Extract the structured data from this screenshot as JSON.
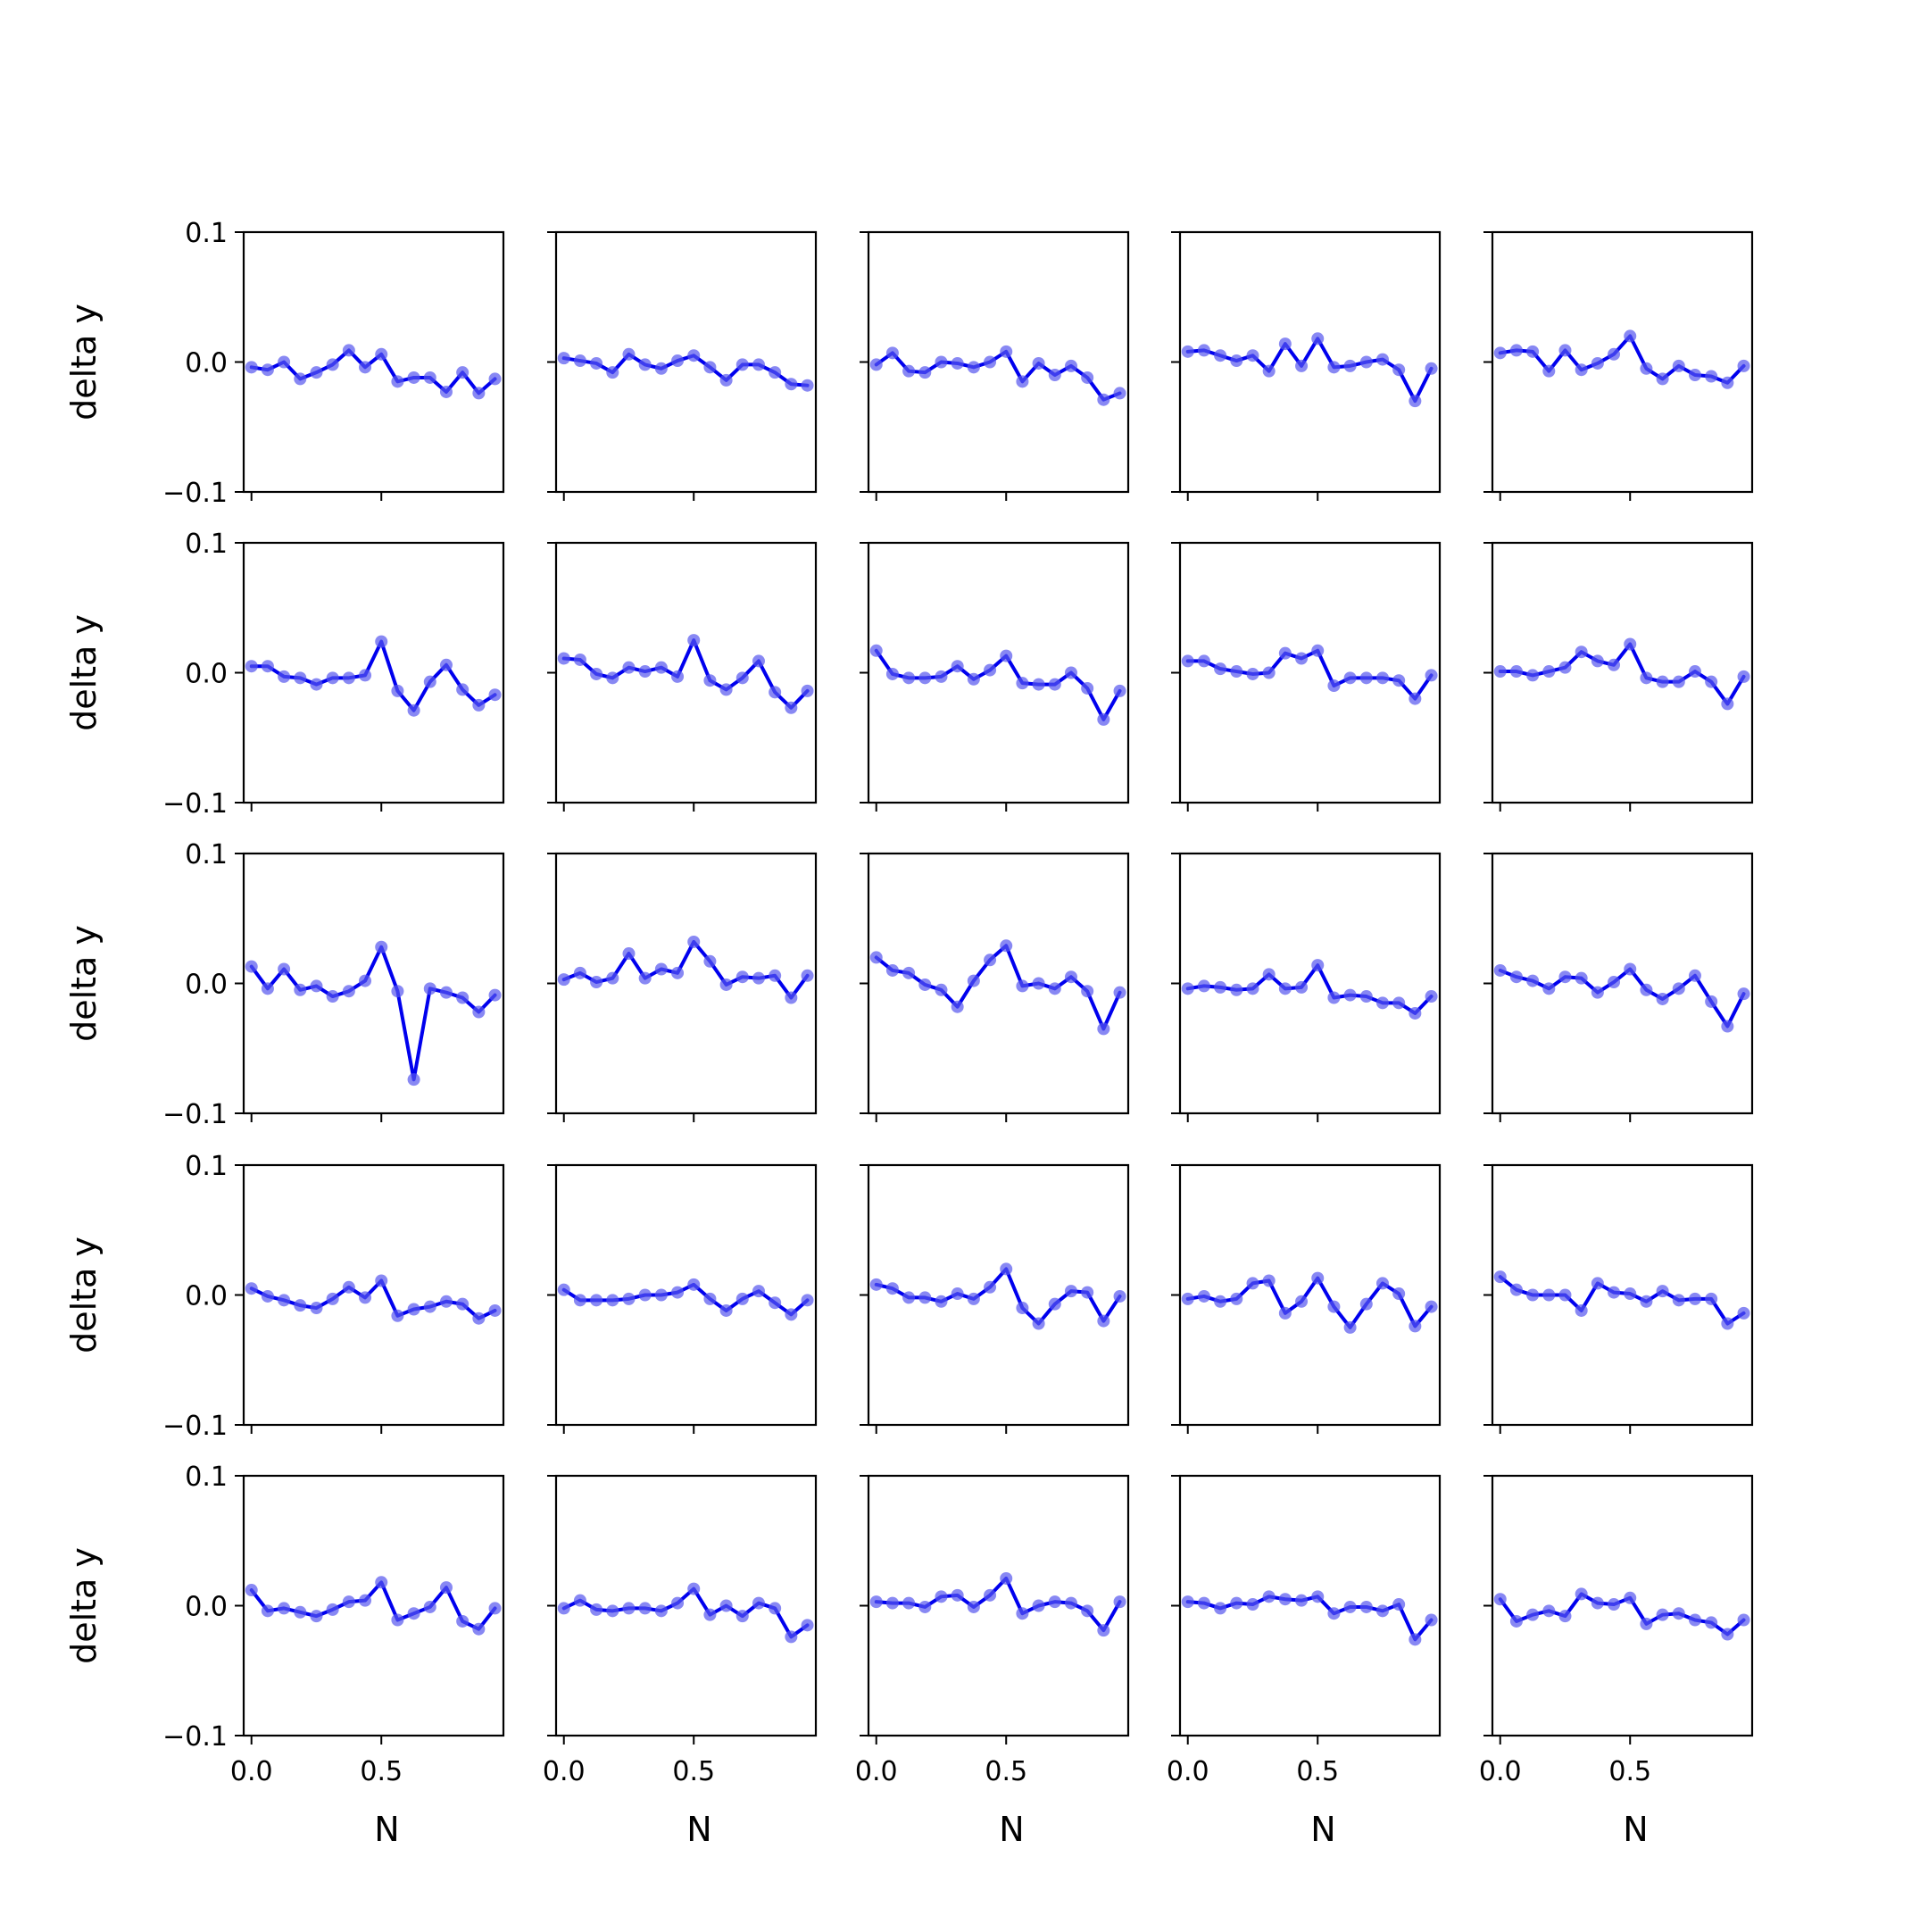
{
  "chart_data": {
    "type": "line",
    "layout": "5x5 grid of subplots",
    "shared_axes": true,
    "xlabel": "N",
    "ylabel": "delta y",
    "xlim": [
      -0.03,
      0.97
    ],
    "ylim": [
      -0.1,
      0.1
    ],
    "xticks": [
      0.0,
      0.5
    ],
    "xtick_labels": [
      "0.0",
      "0.5"
    ],
    "yticks": [
      -0.1,
      0.0,
      0.1
    ],
    "ytick_labels": [
      "−0.1",
      "0.0",
      "0.1"
    ],
    "grid": false,
    "legend": "none",
    "x": [
      0.0,
      0.0625,
      0.125,
      0.1875,
      0.25,
      0.3125,
      0.375,
      0.4375,
      0.5,
      0.5625,
      0.625,
      0.6875,
      0.75,
      0.8125,
      0.875,
      0.9375
    ],
    "panels": [
      [
        -0.004,
        -0.006,
        0.0,
        -0.013,
        -0.008,
        -0.002,
        0.009,
        -0.004,
        0.006,
        -0.015,
        -0.012,
        -0.012,
        -0.023,
        -0.008,
        -0.024,
        -0.013
      ],
      [
        0.003,
        0.001,
        -0.001,
        -0.008,
        0.006,
        -0.002,
        -0.005,
        0.001,
        0.005,
        -0.004,
        -0.014,
        -0.002,
        -0.002,
        -0.008,
        -0.017,
        -0.018
      ],
      [
        -0.002,
        0.007,
        -0.007,
        -0.008,
        0.0,
        -0.001,
        -0.004,
        0.0,
        0.008,
        -0.015,
        -0.001,
        -0.01,
        -0.003,
        -0.012,
        -0.029,
        -0.024
      ],
      [
        0.008,
        0.009,
        0.005,
        0.001,
        0.005,
        -0.007,
        0.014,
        -0.003,
        0.018,
        -0.004,
        -0.003,
        0.0,
        0.002,
        -0.006,
        -0.03,
        -0.005
      ],
      [
        0.007,
        0.009,
        0.008,
        -0.007,
        0.009,
        -0.006,
        -0.001,
        0.006,
        0.02,
        -0.005,
        -0.013,
        -0.003,
        -0.01,
        -0.011,
        -0.016,
        -0.003
      ]
    ],
    "panels_row2": [
      [
        0.005,
        0.005,
        -0.003,
        -0.004,
        -0.009,
        -0.004,
        -0.004,
        -0.002,
        0.024,
        -0.014,
        -0.029,
        -0.007,
        0.006,
        -0.013,
        -0.025,
        -0.017
      ],
      [
        0.011,
        0.01,
        -0.001,
        -0.004,
        0.004,
        0.001,
        0.004,
        -0.003,
        0.025,
        -0.006,
        -0.013,
        -0.004,
        0.009,
        -0.015,
        -0.027,
        -0.014
      ],
      [
        0.017,
        -0.001,
        -0.004,
        -0.004,
        -0.003,
        0.005,
        -0.005,
        0.002,
        0.013,
        -0.008,
        -0.009,
        -0.009,
        0.0,
        -0.012,
        -0.036,
        -0.014
      ],
      [
        0.009,
        0.009,
        0.003,
        0.001,
        -0.001,
        0.0,
        0.015,
        0.011,
        0.017,
        -0.01,
        -0.004,
        -0.004,
        -0.004,
        -0.006,
        -0.02,
        -0.002
      ],
      [
        0.001,
        0.001,
        -0.002,
        0.001,
        0.004,
        0.016,
        0.009,
        0.006,
        0.022,
        -0.004,
        -0.007,
        -0.007,
        0.001,
        -0.007,
        -0.024,
        -0.003
      ]
    ],
    "panels_row3": [
      [
        0.013,
        -0.004,
        0.011,
        -0.005,
        -0.002,
        -0.01,
        -0.006,
        0.002,
        0.028,
        -0.006,
        -0.074,
        -0.004,
        -0.007,
        -0.011,
        -0.022,
        -0.009
      ],
      [
        0.003,
        0.008,
        0.001,
        0.004,
        0.023,
        0.004,
        0.011,
        0.008,
        0.032,
        0.017,
        -0.001,
        0.005,
        0.004,
        0.006,
        -0.011,
        0.006
      ],
      [
        0.02,
        0.01,
        0.008,
        -0.001,
        -0.005,
        -0.018,
        0.002,
        0.018,
        0.029,
        -0.002,
        0.0,
        -0.004,
        0.005,
        -0.006,
        -0.035,
        -0.007
      ],
      [
        -0.004,
        -0.002,
        -0.003,
        -0.005,
        -0.004,
        0.007,
        -0.004,
        -0.003,
        0.014,
        -0.011,
        -0.009,
        -0.01,
        -0.015,
        -0.015,
        -0.023,
        -0.01
      ],
      [
        0.01,
        0.005,
        0.002,
        -0.004,
        0.005,
        0.004,
        -0.007,
        0.001,
        0.011,
        -0.005,
        -0.012,
        -0.004,
        0.006,
        -0.014,
        -0.033,
        -0.008
      ]
    ],
    "panels_row4": [
      [
        0.005,
        -0.001,
        -0.004,
        -0.008,
        -0.01,
        -0.003,
        0.006,
        -0.002,
        0.011,
        -0.016,
        -0.011,
        -0.009,
        -0.005,
        -0.007,
        -0.018,
        -0.012
      ],
      [
        0.004,
        -0.004,
        -0.004,
        -0.004,
        -0.003,
        0.0,
        0.0,
        0.002,
        0.008,
        -0.003,
        -0.012,
        -0.003,
        0.003,
        -0.006,
        -0.015,
        -0.004
      ],
      [
        0.008,
        0.005,
        -0.002,
        -0.002,
        -0.005,
        0.001,
        -0.003,
        0.006,
        0.02,
        -0.01,
        -0.022,
        -0.007,
        0.003,
        0.002,
        -0.02,
        -0.001
      ],
      [
        -0.003,
        -0.001,
        -0.005,
        -0.003,
        0.009,
        0.011,
        -0.014,
        -0.005,
        0.013,
        -0.009,
        -0.025,
        -0.007,
        0.009,
        0.001,
        -0.024,
        -0.009
      ],
      [
        0.014,
        0.004,
        0.0,
        0.0,
        0.0,
        -0.012,
        0.009,
        0.002,
        0.001,
        -0.005,
        0.003,
        -0.004,
        -0.003,
        -0.003,
        -0.022,
        -0.014
      ]
    ],
    "panels_row5": [
      [
        0.012,
        -0.004,
        -0.002,
        -0.005,
        -0.008,
        -0.003,
        0.003,
        0.004,
        0.018,
        -0.011,
        -0.006,
        -0.001,
        0.014,
        -0.012,
        -0.018,
        -0.002
      ],
      [
        -0.002,
        0.004,
        -0.003,
        -0.004,
        -0.002,
        -0.002,
        -0.004,
        0.002,
        0.013,
        -0.007,
        0.0,
        -0.008,
        0.002,
        -0.002,
        -0.024,
        -0.015
      ],
      [
        0.003,
        0.002,
        0.002,
        -0.001,
        0.007,
        0.008,
        -0.001,
        0.008,
        0.021,
        -0.006,
        0.0,
        0.003,
        0.002,
        -0.004,
        -0.019,
        0.003
      ],
      [
        0.003,
        0.002,
        -0.002,
        0.002,
        0.001,
        0.007,
        0.005,
        0.004,
        0.007,
        -0.006,
        -0.001,
        -0.001,
        -0.004,
        0.001,
        -0.026,
        -0.011
      ],
      [
        0.005,
        -0.012,
        -0.007,
        -0.004,
        -0.008,
        0.009,
        0.002,
        0.001,
        0.006,
        -0.014,
        -0.007,
        -0.006,
        -0.011,
        -0.013,
        -0.022,
        -0.011
      ]
    ],
    "line_color": "#0000ee",
    "marker_color": "#5555ee"
  }
}
